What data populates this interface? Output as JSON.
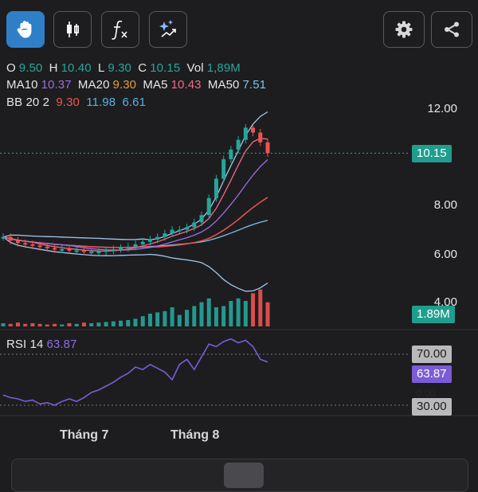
{
  "toolbar": {
    "buttons": [
      {
        "name": "hand-icon",
        "active": true
      },
      {
        "name": "candlestick-icon",
        "active": false
      },
      {
        "name": "function-icon",
        "active": false
      },
      {
        "name": "ai-sparkle-icon",
        "active": false
      },
      {
        "name": "gear-icon",
        "active": false
      },
      {
        "name": "share-icon",
        "active": false
      }
    ]
  },
  "ohlc": {
    "o_label": "O",
    "o": "9.50",
    "h_label": "H",
    "h": "10.40",
    "l_label": "L",
    "l": "9.30",
    "c_label": "C",
    "c": "10.15",
    "vol_label": "Vol",
    "vol": "1,89M"
  },
  "ma": {
    "ma10_label": "MA10",
    "ma10": "10.37",
    "ma20_label": "MA20",
    "ma20": "9.30",
    "ma5_label": "MA5",
    "ma5": "10.43",
    "ma50_label": "MA50",
    "ma50": "7.51"
  },
  "bb": {
    "label": "BB 20 2",
    "v1": "9.30",
    "v2": "11.98",
    "v3": "6.61"
  },
  "rsi": {
    "label": "RSI 14",
    "value": "63.87"
  },
  "price_axis": {
    "ticks": [
      "12.00",
      "8.00",
      "6.00",
      "4.00"
    ],
    "current_price": "10.15",
    "volume_tag": "1.89M"
  },
  "rsi_axis": {
    "upper": "70.00",
    "value": "63.87",
    "lower": "30.00",
    "partial": "0.00"
  },
  "x_axis": {
    "labels": [
      "Tháng 7",
      "Tháng 8"
    ]
  },
  "colors": {
    "up": "#26a69a",
    "down": "#ef5350",
    "ma10": "#9b6ee0",
    "ma20": "#e59a3a",
    "ma5": "#ef6b8a",
    "ma50": "#7fc2e8",
    "bb": "#9fc8f0",
    "rsi": "#7b5cd6",
    "accent": "#2f7fc8"
  },
  "chart_data": {
    "type": "candlestick",
    "series": [
      {
        "name": "price",
        "close": [
          6.7,
          6.55,
          6.45,
          6.4,
          6.35,
          6.3,
          6.25,
          6.2,
          6.2,
          6.15,
          6.15,
          6.1,
          6.1,
          6.1,
          6.15,
          6.2,
          6.25,
          6.3,
          6.4,
          6.5,
          6.6,
          6.7,
          6.85,
          7.0,
          7.0,
          7.1,
          7.3,
          7.6,
          8.3,
          9.1,
          9.9,
          10.3,
          10.7,
          11.2,
          11.0,
          10.6,
          10.15
        ]
      },
      {
        "name": "volume",
        "values": [
          0.25,
          0.2,
          0.3,
          0.2,
          0.25,
          0.2,
          0.15,
          0.2,
          0.15,
          0.25,
          0.2,
          0.3,
          0.25,
          0.3,
          0.35,
          0.4,
          0.45,
          0.5,
          0.6,
          0.8,
          1.0,
          1.1,
          1.2,
          1.5,
          0.9,
          1.3,
          1.6,
          1.9,
          2.2,
          1.5,
          1.6,
          2.0,
          2.2,
          2.0,
          2.6,
          2.9,
          1.89
        ]
      }
    ],
    "ylim": [
      3.8,
      12.6
    ],
    "rsi": [
      38,
      36,
      35,
      33,
      34,
      31,
      32,
      30,
      33,
      35,
      33,
      36,
      40,
      42,
      45,
      48,
      52,
      55,
      60,
      58,
      62,
      59,
      56,
      50,
      62,
      66,
      58,
      68,
      78,
      76,
      80,
      82,
      79,
      81,
      76,
      66,
      63.87
    ]
  }
}
